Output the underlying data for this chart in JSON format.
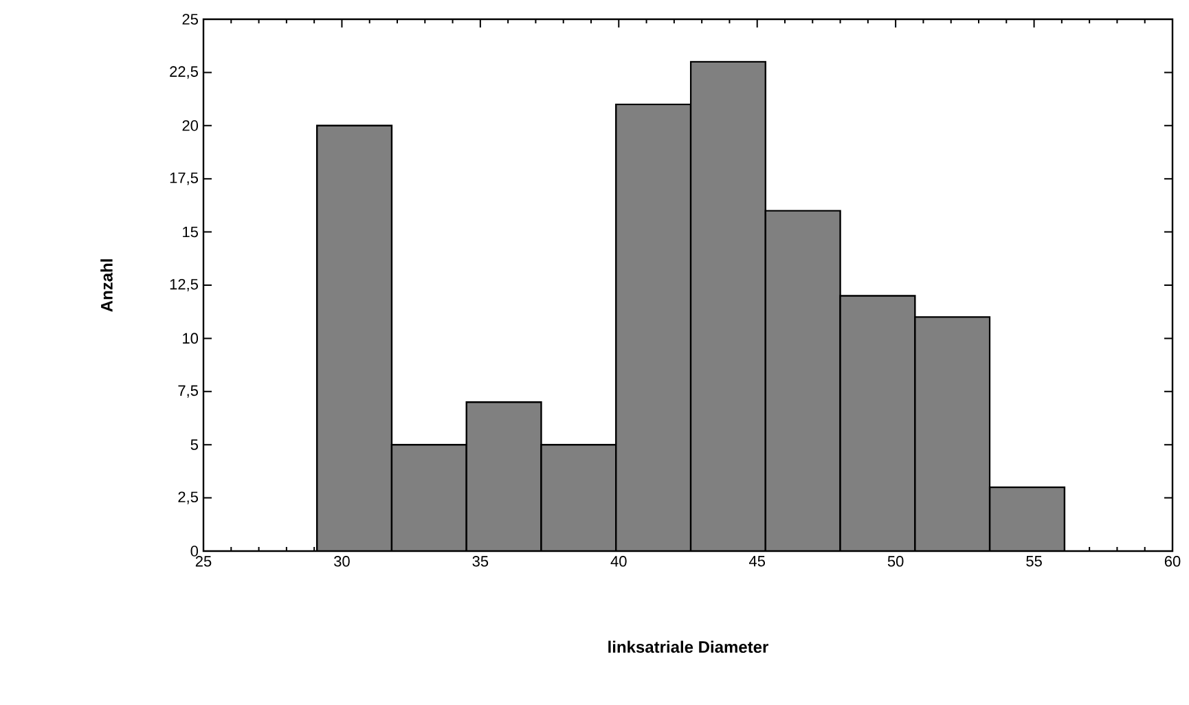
{
  "chart_data": {
    "type": "histogram",
    "xlabel": "linksatriale Diameter",
    "ylabel": "Anzahl",
    "bins": [
      29.1,
      31.8,
      34.5,
      37.2,
      39.9,
      42.6,
      45.3,
      48.0,
      50.7,
      53.4,
      56.1
    ],
    "values": [
      20,
      5,
      7,
      5,
      21,
      23,
      16,
      12,
      11,
      3
    ],
    "color": "#808080",
    "xlim": [
      25,
      60
    ],
    "xticks": [
      25,
      30,
      35,
      40,
      45,
      50,
      55,
      60
    ],
    "ylim": [
      0,
      25
    ],
    "yticks": [
      0,
      {
        "value": 2.5,
        "label": "2,5"
      },
      5,
      {
        "value": 7.5,
        "label": "7,5"
      },
      10,
      {
        "value": 12.5,
        "label": "12,5"
      },
      15,
      {
        "value": 17.5,
        "label": "17,5"
      },
      20,
      {
        "value": 22.5,
        "label": "22,5"
      },
      25
    ],
    "grid": false
  }
}
